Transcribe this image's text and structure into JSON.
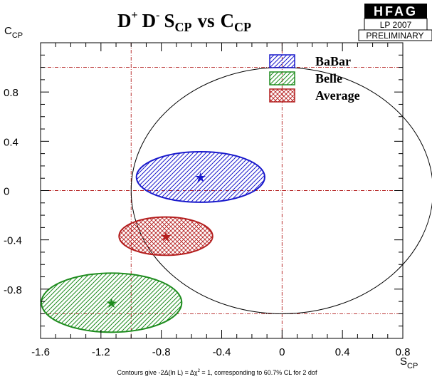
{
  "chart_data": {
    "type": "contour",
    "title_parts": {
      "d1": "D",
      "d1_sup": "+",
      "d2": "D",
      "d2_sup": "-",
      "s": "S",
      "s_sub": "CP",
      "vs": "vs",
      "c": "C",
      "c_sub": "CP"
    },
    "xlabel": "S",
    "xlabel_sub": "CP",
    "ylabel": "C",
    "ylabel_sub": "CP",
    "xlim": [
      -1.6,
      0.8
    ],
    "ylim": [
      -1.2,
      1.2
    ],
    "x_ticks": [
      {
        "value": -1.6,
        "label": "-1.6"
      },
      {
        "value": -1.2,
        "label": "-1.2"
      },
      {
        "value": -0.8,
        "label": "-0.8"
      },
      {
        "value": -0.4,
        "label": "-0.4"
      },
      {
        "value": 0.0,
        "label": "0"
      },
      {
        "value": 0.4,
        "label": "0.4"
      },
      {
        "value": 0.8,
        "label": "0.8"
      }
    ],
    "y_ticks": [
      {
        "value": 0.8,
        "label": "0.8"
      },
      {
        "value": 0.4,
        "label": "0.4"
      },
      {
        "value": 0.0,
        "label": "0"
      },
      {
        "value": -0.4,
        "label": "-0.4"
      },
      {
        "value": -0.8,
        "label": "-0.8"
      }
    ],
    "reference_lines": {
      "vertical": [
        -1.0,
        0.0
      ],
      "horizontal": [
        1.0,
        0.0,
        -1.0
      ]
    },
    "physical_boundary": {
      "center": [
        0,
        0
      ],
      "radius": 1.0
    },
    "series": [
      {
        "name": "BaBar",
        "color": "#1a1acc",
        "hatch": "diagonal-right",
        "center": [
          -0.54,
          0.11
        ],
        "semi_axes": [
          0.425,
          0.205
        ]
      },
      {
        "name": "Belle",
        "color": "#1e8c1e",
        "hatch": "diagonal-left",
        "center": [
          -1.13,
          -0.91
        ],
        "semi_axes": [
          0.465,
          0.24
        ]
      },
      {
        "name": "Average",
        "color": "#b41e1e",
        "hatch": "cross",
        "center": [
          -0.77,
          -0.37
        ],
        "semi_axes": [
          0.31,
          0.155
        ]
      }
    ],
    "grid": false,
    "legend_position": "top-right",
    "footnote": {
      "a": "Contours give -2Δ(ln L) = Δχ",
      "sup": "2",
      "b": " = 1, corresponding to 60.7% CL for 2 dof"
    }
  },
  "logo": {
    "top": "HFAG",
    "mid": "LP 2007",
    "bottom": "PRELIMINARY"
  },
  "colors": {
    "reference_line": "#b41e1e",
    "boundary": "#000000"
  }
}
